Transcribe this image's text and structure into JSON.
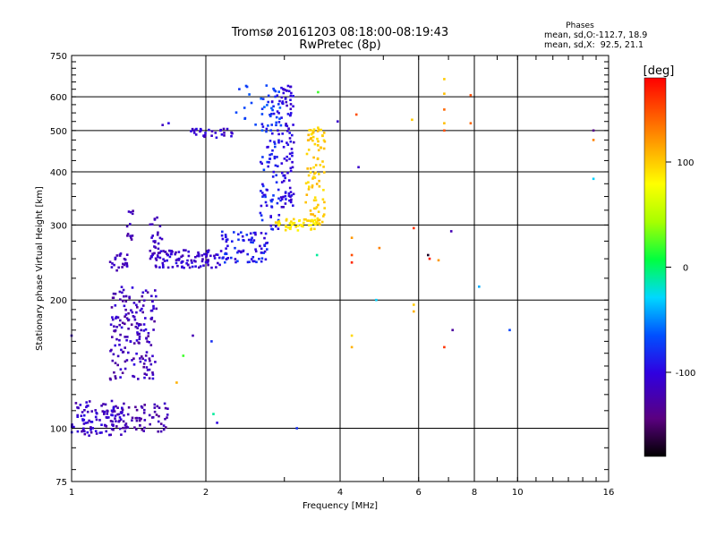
{
  "chart_data": {
    "type": "scatter",
    "title": "Tromsø 20161203 08:18:00-08:19:43",
    "subtitle": "RwPretec (8p)",
    "stats_title": "Phases",
    "stats_o": "mean, sd,O:-112.7, 18.9",
    "stats_x": "mean, sd,X:  92.5, 21.1",
    "xlabel": "Frequency [MHz]",
    "ylabel": "Stationary phase Virtual Height [km]",
    "x_scale": "log",
    "y_scale": "log",
    "xlim": [
      1,
      16
    ],
    "ylim": [
      75,
      750
    ],
    "grid": true,
    "x_ticks": [
      {
        "v": 1,
        "label": "1"
      },
      {
        "v": 2,
        "label": "2"
      },
      {
        "v": 4,
        "label": "4"
      },
      {
        "v": 6,
        "label": "6"
      },
      {
        "v": 8,
        "label": "8"
      },
      {
        "v": 10,
        "label": "10"
      },
      {
        "v": 16,
        "label": "16"
      }
    ],
    "y_ticks": [
      {
        "v": 75,
        "label": "75"
      },
      {
        "v": 100,
        "label": "100"
      },
      {
        "v": 200,
        "label": "200"
      },
      {
        "v": 300,
        "label": "300"
      },
      {
        "v": 400,
        "label": "400"
      },
      {
        "v": 500,
        "label": "500"
      },
      {
        "v": 600,
        "label": "600"
      },
      {
        "v": 750,
        "label": "750"
      }
    ],
    "colorbar": {
      "label": "[deg]",
      "range": [
        -180,
        180
      ],
      "ticks": [
        {
          "v": 100,
          "label": "100"
        },
        {
          "v": 0,
          "label": "0"
        },
        {
          "v": -100,
          "label": "-100"
        }
      ]
    },
    "clusters": [
      {
        "f": [
          1.0,
          1.3
        ],
        "h": [
          96,
          116
        ],
        "phase": [
          -130,
          -95
        ],
        "n": 110
      },
      {
        "f": [
          1.3,
          1.65
        ],
        "h": [
          98,
          115
        ],
        "phase": [
          -135,
          -110
        ],
        "n": 60
      },
      {
        "f": [
          1.22,
          1.55
        ],
        "h": [
          130,
          215
        ],
        "phase": [
          -135,
          -100
        ],
        "n": 170
      },
      {
        "f": [
          1.22,
          1.34
        ],
        "h": [
          233,
          258
        ],
        "phase": [
          -125,
          -105
        ],
        "n": 25
      },
      {
        "f": [
          1.33,
          1.38
        ],
        "h": [
          255,
          330
        ],
        "phase": [
          -130,
          -110
        ],
        "n": 12
      },
      {
        "f": [
          1.5,
          2.15
        ],
        "h": [
          238,
          262
        ],
        "phase": [
          -125,
          -95
        ],
        "n": 110
      },
      {
        "f": [
          1.5,
          1.6
        ],
        "h": [
          260,
          315
        ],
        "phase": [
          -125,
          -105
        ],
        "n": 20
      },
      {
        "f": [
          2.15,
          2.75
        ],
        "h": [
          245,
          290
        ],
        "phase": [
          -110,
          -70
        ],
        "n": 80
      },
      {
        "f": [
          2.65,
          2.95
        ],
        "h": [
          290,
          610
        ],
        "phase": [
          -105,
          -70
        ],
        "n": 90
      },
      {
        "f": [
          2.95,
          3.15
        ],
        "h": [
          330,
          640
        ],
        "phase": [
          -115,
          -90
        ],
        "n": 90
      },
      {
        "f": [
          1.85,
          2.3
        ],
        "h": [
          480,
          505
        ],
        "phase": [
          -120,
          -95
        ],
        "n": 30
      },
      {
        "f": [
          2.3,
          2.95
        ],
        "h": [
          500,
          640
        ],
        "phase": [
          -80,
          -60
        ],
        "n": 30
      },
      {
        "f": [
          2.85,
          3.55
        ],
        "h": [
          290,
          310
        ],
        "phase": [
          80,
          100
        ],
        "n": 50
      },
      {
        "f": [
          3.35,
          3.7
        ],
        "h": [
          300,
          510
        ],
        "phase": [
          90,
          110
        ],
        "n": 90
      }
    ],
    "outliers": [
      {
        "f": 1.6,
        "h": 515,
        "phase": -115
      },
      {
        "f": 1.65,
        "h": 520,
        "phase": -100
      },
      {
        "f": 1.87,
        "h": 165,
        "phase": -120
      },
      {
        "f": 2.06,
        "h": 160,
        "phase": -80
      },
      {
        "f": 2.08,
        "h": 108,
        "phase": -10
      },
      {
        "f": 2.12,
        "h": 103,
        "phase": -100
      },
      {
        "f": 1.72,
        "h": 128,
        "phase": 110
      },
      {
        "f": 1.78,
        "h": 148,
        "phase": 20
      },
      {
        "f": 1.0,
        "h": 165,
        "phase": -115
      },
      {
        "f": 3.2,
        "h": 100,
        "phase": -80
      },
      {
        "f": 3.57,
        "h": 615,
        "phase": 20
      },
      {
        "f": 3.55,
        "h": 255,
        "phase": -10
      },
      {
        "f": 3.95,
        "h": 525,
        "phase": -110
      },
      {
        "f": 4.25,
        "h": 255,
        "phase": 150
      },
      {
        "f": 4.25,
        "h": 245,
        "phase": 165
      },
      {
        "f": 4.25,
        "h": 280,
        "phase": 120
      },
      {
        "f": 4.25,
        "h": 165,
        "phase": 95
      },
      {
        "f": 4.25,
        "h": 155,
        "phase": 110
      },
      {
        "f": 4.35,
        "h": 545,
        "phase": 150
      },
      {
        "f": 4.4,
        "h": 410,
        "phase": -110
      },
      {
        "f": 4.82,
        "h": 200,
        "phase": -30
      },
      {
        "f": 4.9,
        "h": 265,
        "phase": 130
      },
      {
        "f": 5.8,
        "h": 530,
        "phase": 100
      },
      {
        "f": 5.85,
        "h": 295,
        "phase": 160
      },
      {
        "f": 5.85,
        "h": 195,
        "phase": 100
      },
      {
        "f": 5.85,
        "h": 188,
        "phase": 110
      },
      {
        "f": 6.3,
        "h": 255,
        "phase": -170
      },
      {
        "f": 6.35,
        "h": 250,
        "phase": 170
      },
      {
        "f": 6.65,
        "h": 248,
        "phase": 120
      },
      {
        "f": 6.85,
        "h": 660,
        "phase": 100
      },
      {
        "f": 6.85,
        "h": 610,
        "phase": 105
      },
      {
        "f": 6.85,
        "h": 560,
        "phase": 140
      },
      {
        "f": 6.85,
        "h": 520,
        "phase": 105
      },
      {
        "f": 6.85,
        "h": 500,
        "phase": 150
      },
      {
        "f": 6.85,
        "h": 155,
        "phase": 160
      },
      {
        "f": 7.1,
        "h": 290,
        "phase": -120
      },
      {
        "f": 7.15,
        "h": 170,
        "phase": -130
      },
      {
        "f": 7.85,
        "h": 605,
        "phase": 150
      },
      {
        "f": 7.85,
        "h": 520,
        "phase": 140
      },
      {
        "f": 8.2,
        "h": 215,
        "phase": -40
      },
      {
        "f": 9.6,
        "h": 170,
        "phase": -70
      },
      {
        "f": 14.8,
        "h": 500,
        "phase": -140
      },
      {
        "f": 14.8,
        "h": 475,
        "phase": 130
      },
      {
        "f": 14.8,
        "h": 385,
        "phase": -30
      }
    ]
  }
}
